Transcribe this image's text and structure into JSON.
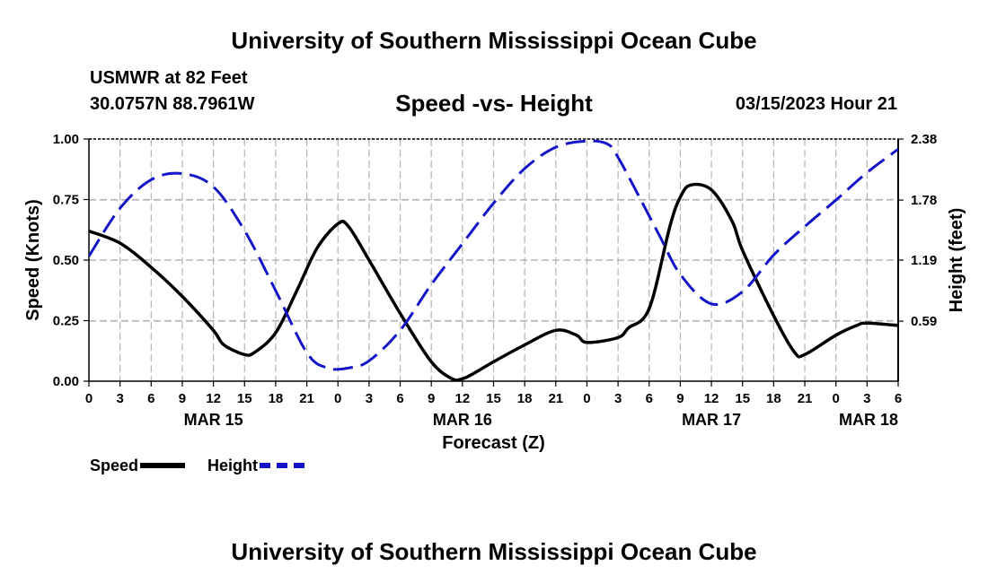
{
  "header": {
    "title": "University of Southern Mississippi Ocean Cube",
    "station": "USMWR at 82 Feet",
    "coordinates": "30.0757N  88.7961W",
    "chart_title": "Speed -vs- Height",
    "datetime": "03/15/2023 Hour 21"
  },
  "footer": {
    "title": "University of Southern Mississippi Ocean Cube"
  },
  "legend": {
    "speed_label": "Speed",
    "height_label": "Height"
  },
  "colors": {
    "speed": "#000000",
    "height": "#1414c8",
    "grid": "#b4b4b4"
  },
  "chart_data": {
    "type": "line",
    "title": "Speed -vs- Height",
    "xlabel": "Forecast (Z)",
    "ylabel": "Speed (Knots)",
    "y2label": "Height (feet)",
    "xlim": [
      0,
      78
    ],
    "ylim": [
      0,
      1
    ],
    "y2lim": [
      0,
      2.38
    ],
    "x_ticks": [
      0,
      3,
      6,
      9,
      12,
      15,
      18,
      21,
      24,
      27,
      30,
      33,
      36,
      39,
      42,
      45,
      48,
      51,
      54,
      57,
      60,
      63,
      66,
      69,
      72,
      75,
      78
    ],
    "x_tick_labels": [
      "0",
      "3",
      "6",
      "9",
      "12",
      "15",
      "18",
      "21",
      "0",
      "3",
      "6",
      "9",
      "12",
      "15",
      "18",
      "21",
      "0",
      "3",
      "6",
      "9",
      "12",
      "15",
      "18",
      "21",
      "0",
      "3",
      "6"
    ],
    "date_labels": [
      {
        "x": 12,
        "label": "MAR 15"
      },
      {
        "x": 36,
        "label": "MAR 16"
      },
      {
        "x": 60,
        "label": "MAR 17"
      },
      {
        "x": 78,
        "label": "MAR 18"
      }
    ],
    "y_ticks": [
      0,
      0.25,
      0.5,
      0.75,
      1.0
    ],
    "y_tick_labels": [
      "0.00",
      "0.25",
      "0.50",
      "0.75",
      "1.00"
    ],
    "y2_ticks": [
      0.59,
      1.19,
      1.78,
      2.38
    ],
    "y2_tick_labels": [
      "0.59",
      "1.19",
      "1.78",
      "2.38"
    ],
    "series": [
      {
        "name": "Speed",
        "axis": "left",
        "x": [
          0,
          3,
          6,
          9,
          12,
          13,
          15,
          16,
          18,
          20,
          22,
          24,
          25,
          27,
          30,
          33,
          35,
          36,
          37,
          39,
          42,
          45,
          47,
          48,
          51,
          52,
          54,
          56,
          57,
          58,
          60,
          62,
          63,
          66,
          68,
          69,
          72,
          74,
          75,
          78
        ],
        "values": [
          0.62,
          0.57,
          0.47,
          0.35,
          0.21,
          0.15,
          0.11,
          0.12,
          0.2,
          0.37,
          0.55,
          0.65,
          0.64,
          0.5,
          0.28,
          0.08,
          0.01,
          0.01,
          0.03,
          0.08,
          0.15,
          0.21,
          0.19,
          0.16,
          0.18,
          0.22,
          0.3,
          0.64,
          0.76,
          0.81,
          0.79,
          0.66,
          0.54,
          0.27,
          0.12,
          0.11,
          0.19,
          0.23,
          0.24,
          0.23
        ]
      },
      {
        "name": "Height",
        "axis": "right",
        "x": [
          0,
          3,
          6,
          9,
          12,
          15,
          18,
          21,
          23,
          25,
          27,
          30,
          33,
          36,
          39,
          42,
          45,
          48,
          50,
          51,
          53,
          55,
          57,
          60,
          63,
          66,
          69,
          72,
          75,
          78
        ],
        "values": [
          1.23,
          1.7,
          1.98,
          2.04,
          1.91,
          1.48,
          0.89,
          0.28,
          0.13,
          0.13,
          0.2,
          0.5,
          0.95,
          1.35,
          1.75,
          2.09,
          2.3,
          2.36,
          2.33,
          2.2,
          1.82,
          1.43,
          1.05,
          0.76,
          0.88,
          1.24,
          1.52,
          1.78,
          2.05,
          2.28
        ]
      }
    ]
  }
}
